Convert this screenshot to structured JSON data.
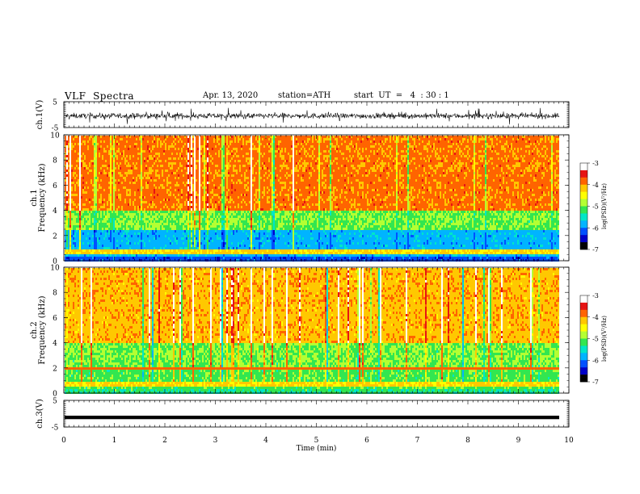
{
  "header": {
    "title": "VLF  Spectra",
    "date": "Apr. 13, 2020",
    "station": "station=ATH",
    "start": "start  UT  =   4  : 30 : 1"
  },
  "chart_data": [
    {
      "type": "line",
      "id": "ch1-waveform",
      "ylabel": "ch.1(V)",
      "ylim": [
        -5,
        5
      ],
      "yticks": [
        "5",
        "-5"
      ],
      "xlim": [
        0,
        10
      ],
      "description_series": [
        {
          "values_range": [
            -2.5,
            2.5
          ],
          "mean": -0.5
        }
      ]
    },
    {
      "type": "heatmap",
      "id": "ch1-spectrogram",
      "ylabel": "Frequency  (kHz)",
      "channel_label": "ch.1",
      "ylim": [
        0,
        10
      ],
      "yticks": [
        "10",
        "8",
        "6",
        "4",
        "2",
        "0"
      ],
      "xlim": [
        0,
        10
      ],
      "colorbar": {
        "label": "log(PSD)(V²/Hz)",
        "ticks": [
          "-3",
          "-4",
          "-5",
          "-6",
          "-7"
        ],
        "range": [
          -7,
          -3
        ]
      },
      "bands": [
        {
          "freq_range_khz": [
            4,
            10
          ],
          "log_psd": -3.9
        },
        {
          "freq_range_khz": [
            2.5,
            4
          ],
          "log_psd": -5.0
        },
        {
          "freq_range_khz": [
            0.4,
            2.5
          ],
          "log_psd": -5.8
        },
        {
          "freq_range_khz": [
            0,
            0.4
          ],
          "log_psd": -6.2
        }
      ]
    },
    {
      "type": "heatmap",
      "id": "ch2-spectrogram",
      "ylabel": "Frequency  (kHz)",
      "channel_label": "ch.2",
      "ylim": [
        0,
        10
      ],
      "yticks": [
        "10",
        "8",
        "6",
        "4",
        "2",
        "0"
      ],
      "xlim": [
        0,
        10
      ],
      "colorbar": {
        "label": "log(PSD)(V²/Hz)",
        "ticks": [
          "-3",
          "-4",
          "-5",
          "-6",
          "-7"
        ],
        "range": [
          -7,
          -3
        ]
      },
      "bands": [
        {
          "freq_range_khz": [
            4,
            10
          ],
          "log_psd": -4.1
        },
        {
          "freq_range_khz": [
            2.2,
            4
          ],
          "log_psd": -5.0
        },
        {
          "freq_range_khz": [
            0.4,
            2.2
          ],
          "log_psd": -5.1
        },
        {
          "freq_range_khz": [
            0,
            0.4
          ],
          "log_psd": -5.3
        }
      ]
    },
    {
      "type": "line",
      "id": "ch3-waveform",
      "ylabel": "ch.3(V)",
      "ylim": [
        -5,
        5
      ],
      "yticks": [
        "5",
        "-5"
      ],
      "xlim": [
        0,
        10
      ],
      "description_series": [
        {
          "values_range": [
            -1.6,
            -1.2
          ],
          "mean": -1.4
        }
      ]
    }
  ],
  "xaxis": {
    "label": "Time  (min)",
    "ticks": [
      "0",
      "1",
      "2",
      "3",
      "4",
      "5",
      "6",
      "7",
      "8",
      "9",
      "10"
    ],
    "xlim": [
      0,
      10
    ]
  },
  "colors": {
    "colormap": [
      "#000000",
      "#0000c8",
      "#0050ff",
      "#00b4ff",
      "#00e6c8",
      "#32e650",
      "#b4ff32",
      "#ffff00",
      "#ffc800",
      "#ff6400",
      "#e61414",
      "#ffffff"
    ]
  }
}
